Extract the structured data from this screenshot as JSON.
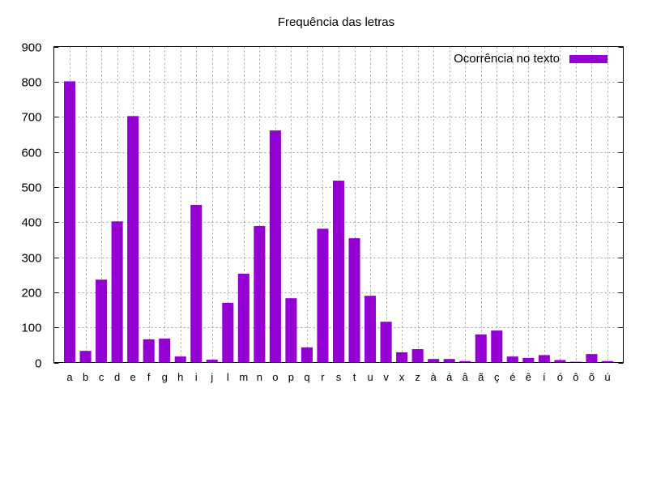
{
  "chart_data": {
    "type": "bar",
    "title": "Frequência das letras",
    "xlabel": "",
    "ylabel": "",
    "ylim": [
      0,
      900
    ],
    "yticks": [
      0,
      100,
      200,
      300,
      400,
      500,
      600,
      700,
      800,
      900
    ],
    "grid": true,
    "legend_position": "top-right",
    "categories": [
      "a",
      "b",
      "c",
      "d",
      "e",
      "f",
      "g",
      "h",
      "i",
      "j",
      "l",
      "m",
      "n",
      "o",
      "p",
      "q",
      "r",
      "s",
      "t",
      "u",
      "v",
      "x",
      "z",
      "à",
      "á",
      "â",
      "ã",
      "ç",
      "é",
      "ê",
      "í",
      "ó",
      "ô",
      "õ",
      "ú"
    ],
    "series": [
      {
        "name": "Ocorrência no texto",
        "color": "#9400d3",
        "values": [
          801,
          33,
          236,
          402,
          702,
          66,
          68,
          17,
          449,
          8,
          170,
          253,
          389,
          661,
          183,
          43,
          381,
          518,
          354,
          190,
          116,
          29,
          38,
          10,
          10,
          4,
          80,
          91,
          17,
          13,
          21,
          7,
          2,
          24,
          4
        ]
      }
    ]
  }
}
